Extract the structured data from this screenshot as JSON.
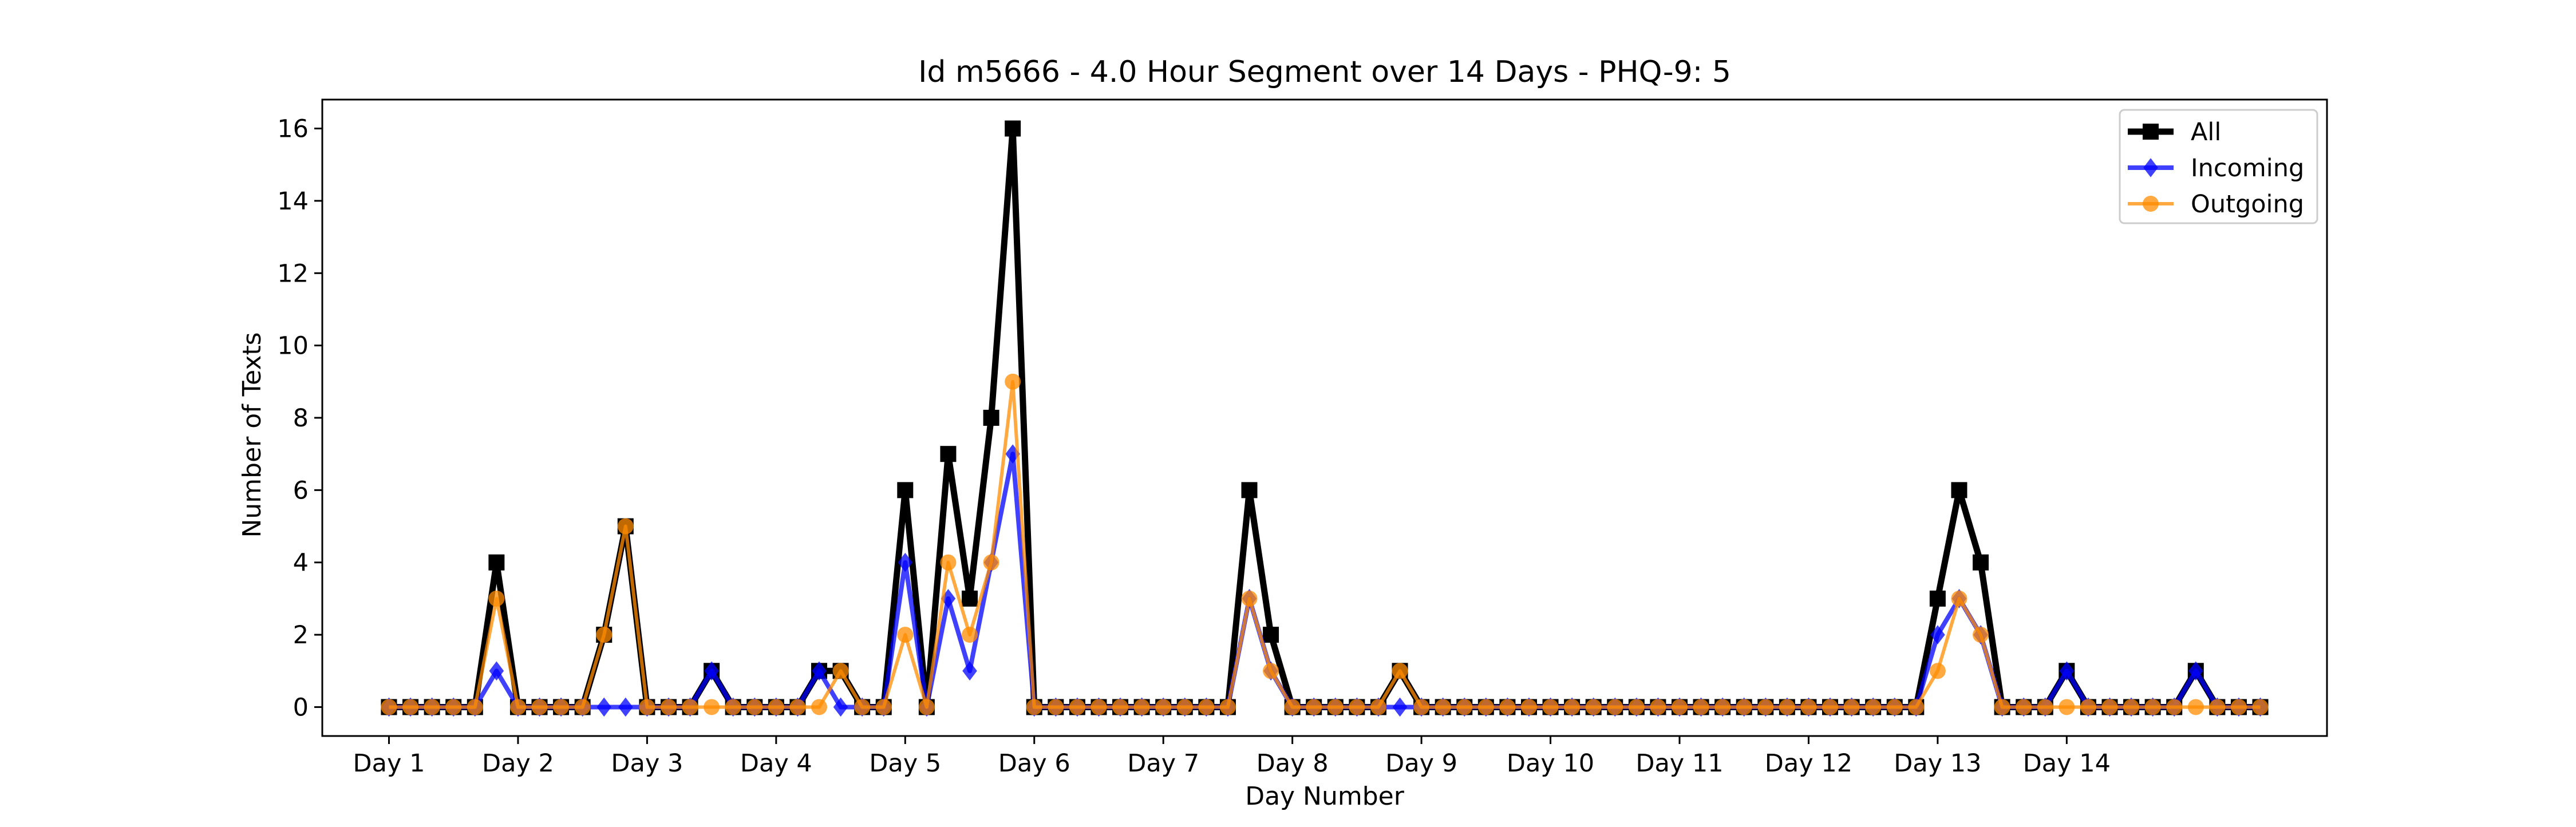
{
  "chart_data": {
    "type": "line",
    "title": "Id m5666 - 4.0 Hour Segment over 14 Days - PHQ-9: 5",
    "xlabel": "Day Number",
    "ylabel": "Number of Texts",
    "ylim": [
      -0.8,
      16.8
    ],
    "y_ticks": [
      0,
      2,
      4,
      6,
      8,
      10,
      12,
      14,
      16
    ],
    "x_ticks": [
      "Day 1",
      "Day 2",
      "Day 3",
      "Day 4",
      "Day 5",
      "Day 6",
      "Day 7",
      "Day 8",
      "Day 9",
      "Day 10",
      "Day 11",
      "Day 12",
      "Day 13",
      "Day 14"
    ],
    "segments_per_day": 6,
    "grid": false,
    "legend_position": "upper right",
    "series": [
      {
        "name": "All",
        "color": "#000000",
        "marker": "square",
        "values": [
          0,
          0,
          0,
          0,
          0,
          4,
          0,
          0,
          0,
          0,
          2,
          5,
          0,
          0,
          0,
          1,
          0,
          0,
          0,
          0,
          1,
          1,
          0,
          0,
          6,
          0,
          7,
          3,
          8,
          16,
          0,
          0,
          0,
          0,
          0,
          0,
          0,
          0,
          0,
          0,
          6,
          2,
          0,
          0,
          0,
          0,
          0,
          1,
          0,
          0,
          0,
          0,
          0,
          0,
          0,
          0,
          0,
          0,
          0,
          0,
          0,
          0,
          0,
          0,
          0,
          0,
          0,
          0,
          0,
          0,
          0,
          0,
          3,
          6,
          4,
          0,
          0,
          0,
          1,
          0,
          0,
          0,
          0,
          0,
          1,
          0,
          0,
          0
        ]
      },
      {
        "name": "Incoming",
        "color": "#0000ff",
        "marker": "diamond",
        "values": [
          0,
          0,
          0,
          0,
          0,
          1,
          0,
          0,
          0,
          0,
          0,
          0,
          0,
          0,
          0,
          1,
          0,
          0,
          0,
          0,
          1,
          0,
          0,
          0,
          4,
          0,
          3,
          1,
          4,
          7,
          0,
          0,
          0,
          0,
          0,
          0,
          0,
          0,
          0,
          0,
          3,
          1,
          0,
          0,
          0,
          0,
          0,
          0,
          0,
          0,
          0,
          0,
          0,
          0,
          0,
          0,
          0,
          0,
          0,
          0,
          0,
          0,
          0,
          0,
          0,
          0,
          0,
          0,
          0,
          0,
          0,
          0,
          2,
          3,
          2,
          0,
          0,
          0,
          1,
          0,
          0,
          0,
          0,
          0,
          1,
          0,
          0,
          0
        ]
      },
      {
        "name": "Outgoing",
        "color": "#ff8c00",
        "marker": "circle",
        "values": [
          0,
          0,
          0,
          0,
          0,
          3,
          0,
          0,
          0,
          0,
          2,
          5,
          0,
          0,
          0,
          0,
          0,
          0,
          0,
          0,
          0,
          1,
          0,
          0,
          2,
          0,
          4,
          2,
          4,
          9,
          0,
          0,
          0,
          0,
          0,
          0,
          0,
          0,
          0,
          0,
          3,
          1,
          0,
          0,
          0,
          0,
          0,
          1,
          0,
          0,
          0,
          0,
          0,
          0,
          0,
          0,
          0,
          0,
          0,
          0,
          0,
          0,
          0,
          0,
          0,
          0,
          0,
          0,
          0,
          0,
          0,
          0,
          1,
          3,
          2,
          0,
          0,
          0,
          0,
          0,
          0,
          0,
          0,
          0,
          0,
          0,
          0,
          0
        ]
      }
    ]
  }
}
